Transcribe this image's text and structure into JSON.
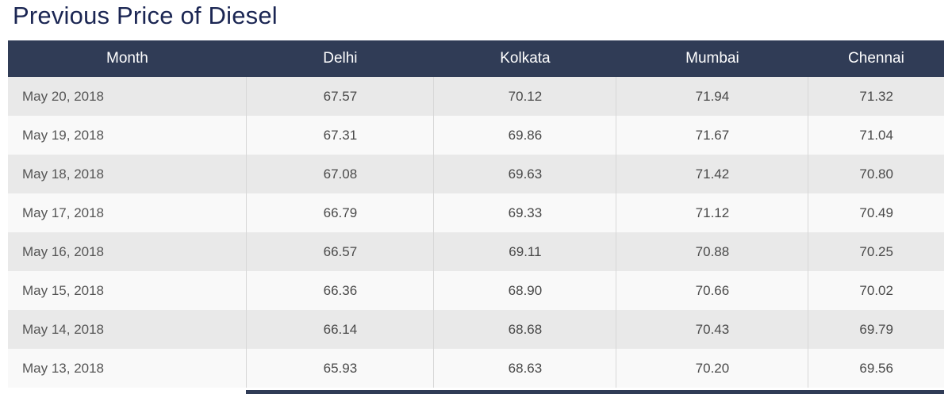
{
  "page": {
    "title": "Previous Price of Diesel"
  },
  "chart_data": {
    "type": "table",
    "title": "Previous Price of Diesel",
    "columns": [
      "Month",
      "Delhi",
      "Kolkata",
      "Mumbai",
      "Chennai"
    ],
    "rows": [
      [
        "May 20, 2018",
        "67.57",
        "70.12",
        "71.94",
        "71.32"
      ],
      [
        "May 19, 2018",
        "67.31",
        "69.86",
        "71.67",
        "71.04"
      ],
      [
        "May 18, 2018",
        "67.08",
        "69.63",
        "71.42",
        "70.80"
      ],
      [
        "May 17, 2018",
        "66.79",
        "69.33",
        "71.12",
        "70.49"
      ],
      [
        "May 16, 2018",
        "66.57",
        "69.11",
        "70.88",
        "70.25"
      ],
      [
        "May 15, 2018",
        "66.36",
        "68.90",
        "70.66",
        "70.02"
      ],
      [
        "May 14, 2018",
        "66.14",
        "68.68",
        "70.43",
        "69.79"
      ],
      [
        "May 13, 2018",
        "65.93",
        "68.63",
        "70.20",
        "69.56"
      ]
    ]
  },
  "colors": {
    "header_bg": "#303c56",
    "title_text": "#1b2653",
    "row_odd": "#e9e9e9",
    "row_even": "#f9f9f9",
    "cell_text": "#494949",
    "header_text": "#ffffff",
    "cell_border": "#d8d8d8"
  }
}
